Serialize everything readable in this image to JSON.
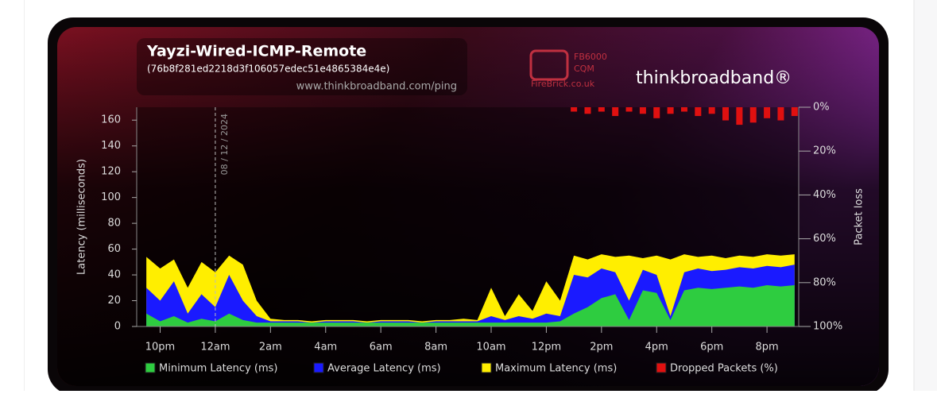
{
  "chart_data": {
    "type": "area",
    "title": "Yayzi-Wired-ICMP-Remote",
    "subtitle": "(76b8f281ed2218d3f106057edec51e4865384e4e)",
    "source": "www.thinkbroadband.com/ping",
    "logos": [
      "FB6000",
      "CQM",
      "FireBrick.co.uk",
      "thinkbroadband®"
    ],
    "y_label": "Latency (milliseconds)",
    "y2_label": "Packet loss",
    "annotation": {
      "x": 0,
      "text": "08 / 12 / 2024"
    },
    "xlim": [
      -2.85,
      21.15
    ],
    "xticks": [
      {
        "value": -2,
        "label": "10pm"
      },
      {
        "value": 0,
        "label": "12am"
      },
      {
        "value": 2,
        "label": "2am"
      },
      {
        "value": 4,
        "label": "4am"
      },
      {
        "value": 6,
        "label": "6am"
      },
      {
        "value": 8,
        "label": "8am"
      },
      {
        "value": 10,
        "label": "10am"
      },
      {
        "value": 12,
        "label": "12pm"
      },
      {
        "value": 14,
        "label": "2pm"
      },
      {
        "value": 16,
        "label": "4pm"
      },
      {
        "value": 18,
        "label": "6pm"
      },
      {
        "value": 20,
        "label": "8pm"
      }
    ],
    "ylim": [
      0,
      170
    ],
    "yticks": [
      0,
      20,
      40,
      60,
      80,
      100,
      120,
      140,
      160
    ],
    "y2lim": [
      100,
      0
    ],
    "y2ticks": [
      {
        "value": 0,
        "label": "0%"
      },
      {
        "value": 20,
        "label": "20%"
      },
      {
        "value": 40,
        "label": "40%"
      },
      {
        "value": 60,
        "label": "60%"
      },
      {
        "value": 80,
        "label": "80%"
      },
      {
        "value": 100,
        "label": "100%"
      }
    ],
    "x": [
      -2.5,
      -2,
      -1.5,
      -1,
      -0.5,
      0,
      0.5,
      1,
      1.5,
      2,
      2.5,
      3,
      3.5,
      4,
      4.5,
      5,
      5.5,
      6,
      6.5,
      7,
      7.5,
      8,
      8.5,
      9,
      9.5,
      10,
      10.5,
      11,
      11.5,
      12,
      12.5,
      13,
      13.5,
      14,
      14.5,
      15,
      15.5,
      16,
      16.5,
      17,
      17.5,
      18,
      18.5,
      19,
      19.5,
      20,
      20.5,
      21
    ],
    "series": [
      {
        "name": "Maximum Latency (ms)",
        "color": "#ffee00",
        "values": [
          54,
          45,
          52,
          30,
          50,
          42,
          55,
          48,
          20,
          6,
          5,
          5,
          4,
          5,
          5,
          5,
          4,
          5,
          5,
          5,
          4,
          5,
          5,
          6,
          5,
          30,
          8,
          25,
          12,
          35,
          20,
          55,
          52,
          56,
          54,
          55,
          53,
          55,
          52,
          56,
          54,
          55,
          53,
          55,
          54,
          56,
          55,
          56
        ]
      },
      {
        "name": "Average Latency (ms)",
        "color": "#1a1aff",
        "values": [
          30,
          20,
          35,
          10,
          25,
          15,
          40,
          20,
          8,
          4,
          4,
          4,
          3,
          4,
          4,
          4,
          3,
          4,
          4,
          4,
          3,
          4,
          4,
          4,
          4,
          8,
          5,
          8,
          6,
          10,
          8,
          40,
          38,
          45,
          42,
          20,
          44,
          40,
          8,
          42,
          45,
          43,
          44,
          46,
          45,
          47,
          46,
          48
        ]
      },
      {
        "name": "Minimum Latency (ms)",
        "color": "#2ecc40",
        "values": [
          10,
          4,
          8,
          3,
          6,
          4,
          10,
          5,
          3,
          3,
          3,
          3,
          3,
          3,
          3,
          3,
          3,
          3,
          3,
          3,
          3,
          3,
          3,
          3,
          3,
          3,
          3,
          3,
          3,
          3,
          4,
          10,
          15,
          22,
          25,
          5,
          28,
          26,
          5,
          28,
          30,
          29,
          30,
          31,
          30,
          32,
          31,
          32
        ]
      },
      {
        "name": "Dropped Packets (%)",
        "color": "#e01010",
        "axis": "y2",
        "values": [
          0,
          0,
          0,
          0,
          0,
          0,
          0,
          0,
          0,
          0,
          0,
          0,
          0,
          0,
          0,
          0,
          0,
          0,
          0,
          0,
          0,
          0,
          0,
          0,
          0,
          0,
          0,
          0,
          0,
          0,
          0,
          2,
          3,
          2,
          4,
          2,
          3,
          5,
          3,
          2,
          4,
          3,
          6,
          8,
          7,
          5,
          6,
          4
        ]
      }
    ],
    "legend_order": [
      2,
      1,
      0,
      3
    ]
  }
}
